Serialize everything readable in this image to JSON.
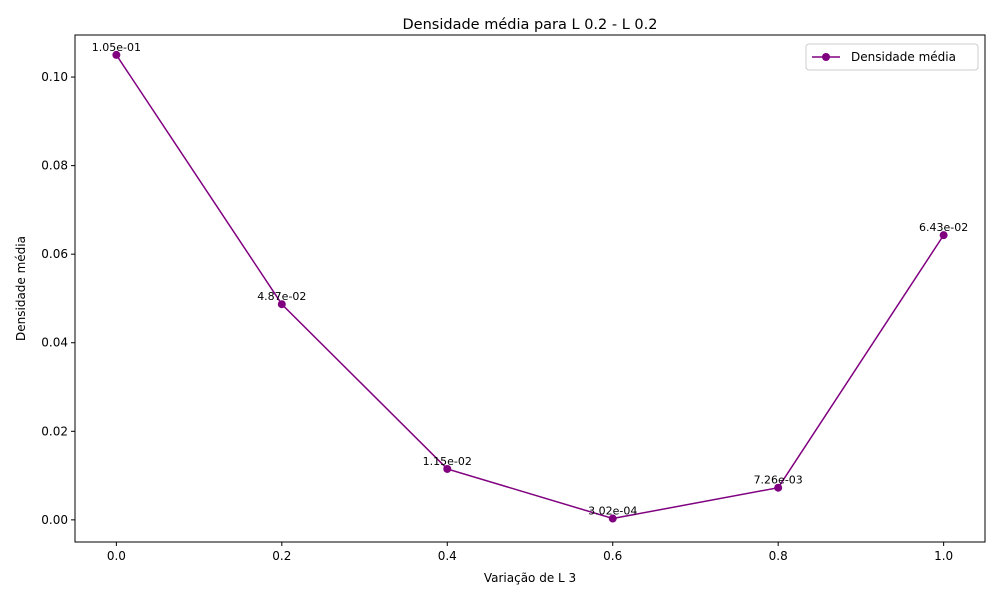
{
  "chart_data": {
    "type": "line",
    "title": "Densidade média para L 0.2 - L 0.2",
    "xlabel": "Variação de L 3",
    "ylabel": "Densidade média",
    "xlim": [
      -0.05,
      1.05
    ],
    "ylim": [
      -0.005,
      0.1095
    ],
    "xticks": [
      0.0,
      0.2,
      0.4,
      0.6,
      0.8,
      1.0
    ],
    "xtick_labels": [
      "0.0",
      "0.2",
      "0.4",
      "0.6",
      "0.8",
      "1.0"
    ],
    "yticks": [
      0.0,
      0.02,
      0.04,
      0.06,
      0.08,
      0.1
    ],
    "ytick_labels": [
      "0.00",
      "0.02",
      "0.04",
      "0.06",
      "0.08",
      "0.10"
    ],
    "grid": false,
    "legend_position": "top-right",
    "series": [
      {
        "name": "Densidade média",
        "color": "#800080",
        "marker": "circle",
        "x": [
          0.0,
          0.2,
          0.4,
          0.6,
          0.8,
          1.0
        ],
        "y": [
          0.105,
          0.0487,
          0.0115,
          0.000302,
          0.00726,
          0.0643
        ],
        "labels": [
          "1.05e-01",
          "4.87e-02",
          "1.15e-02",
          "3.02e-04",
          "7.26e-03",
          "6.43e-02"
        ]
      }
    ]
  }
}
